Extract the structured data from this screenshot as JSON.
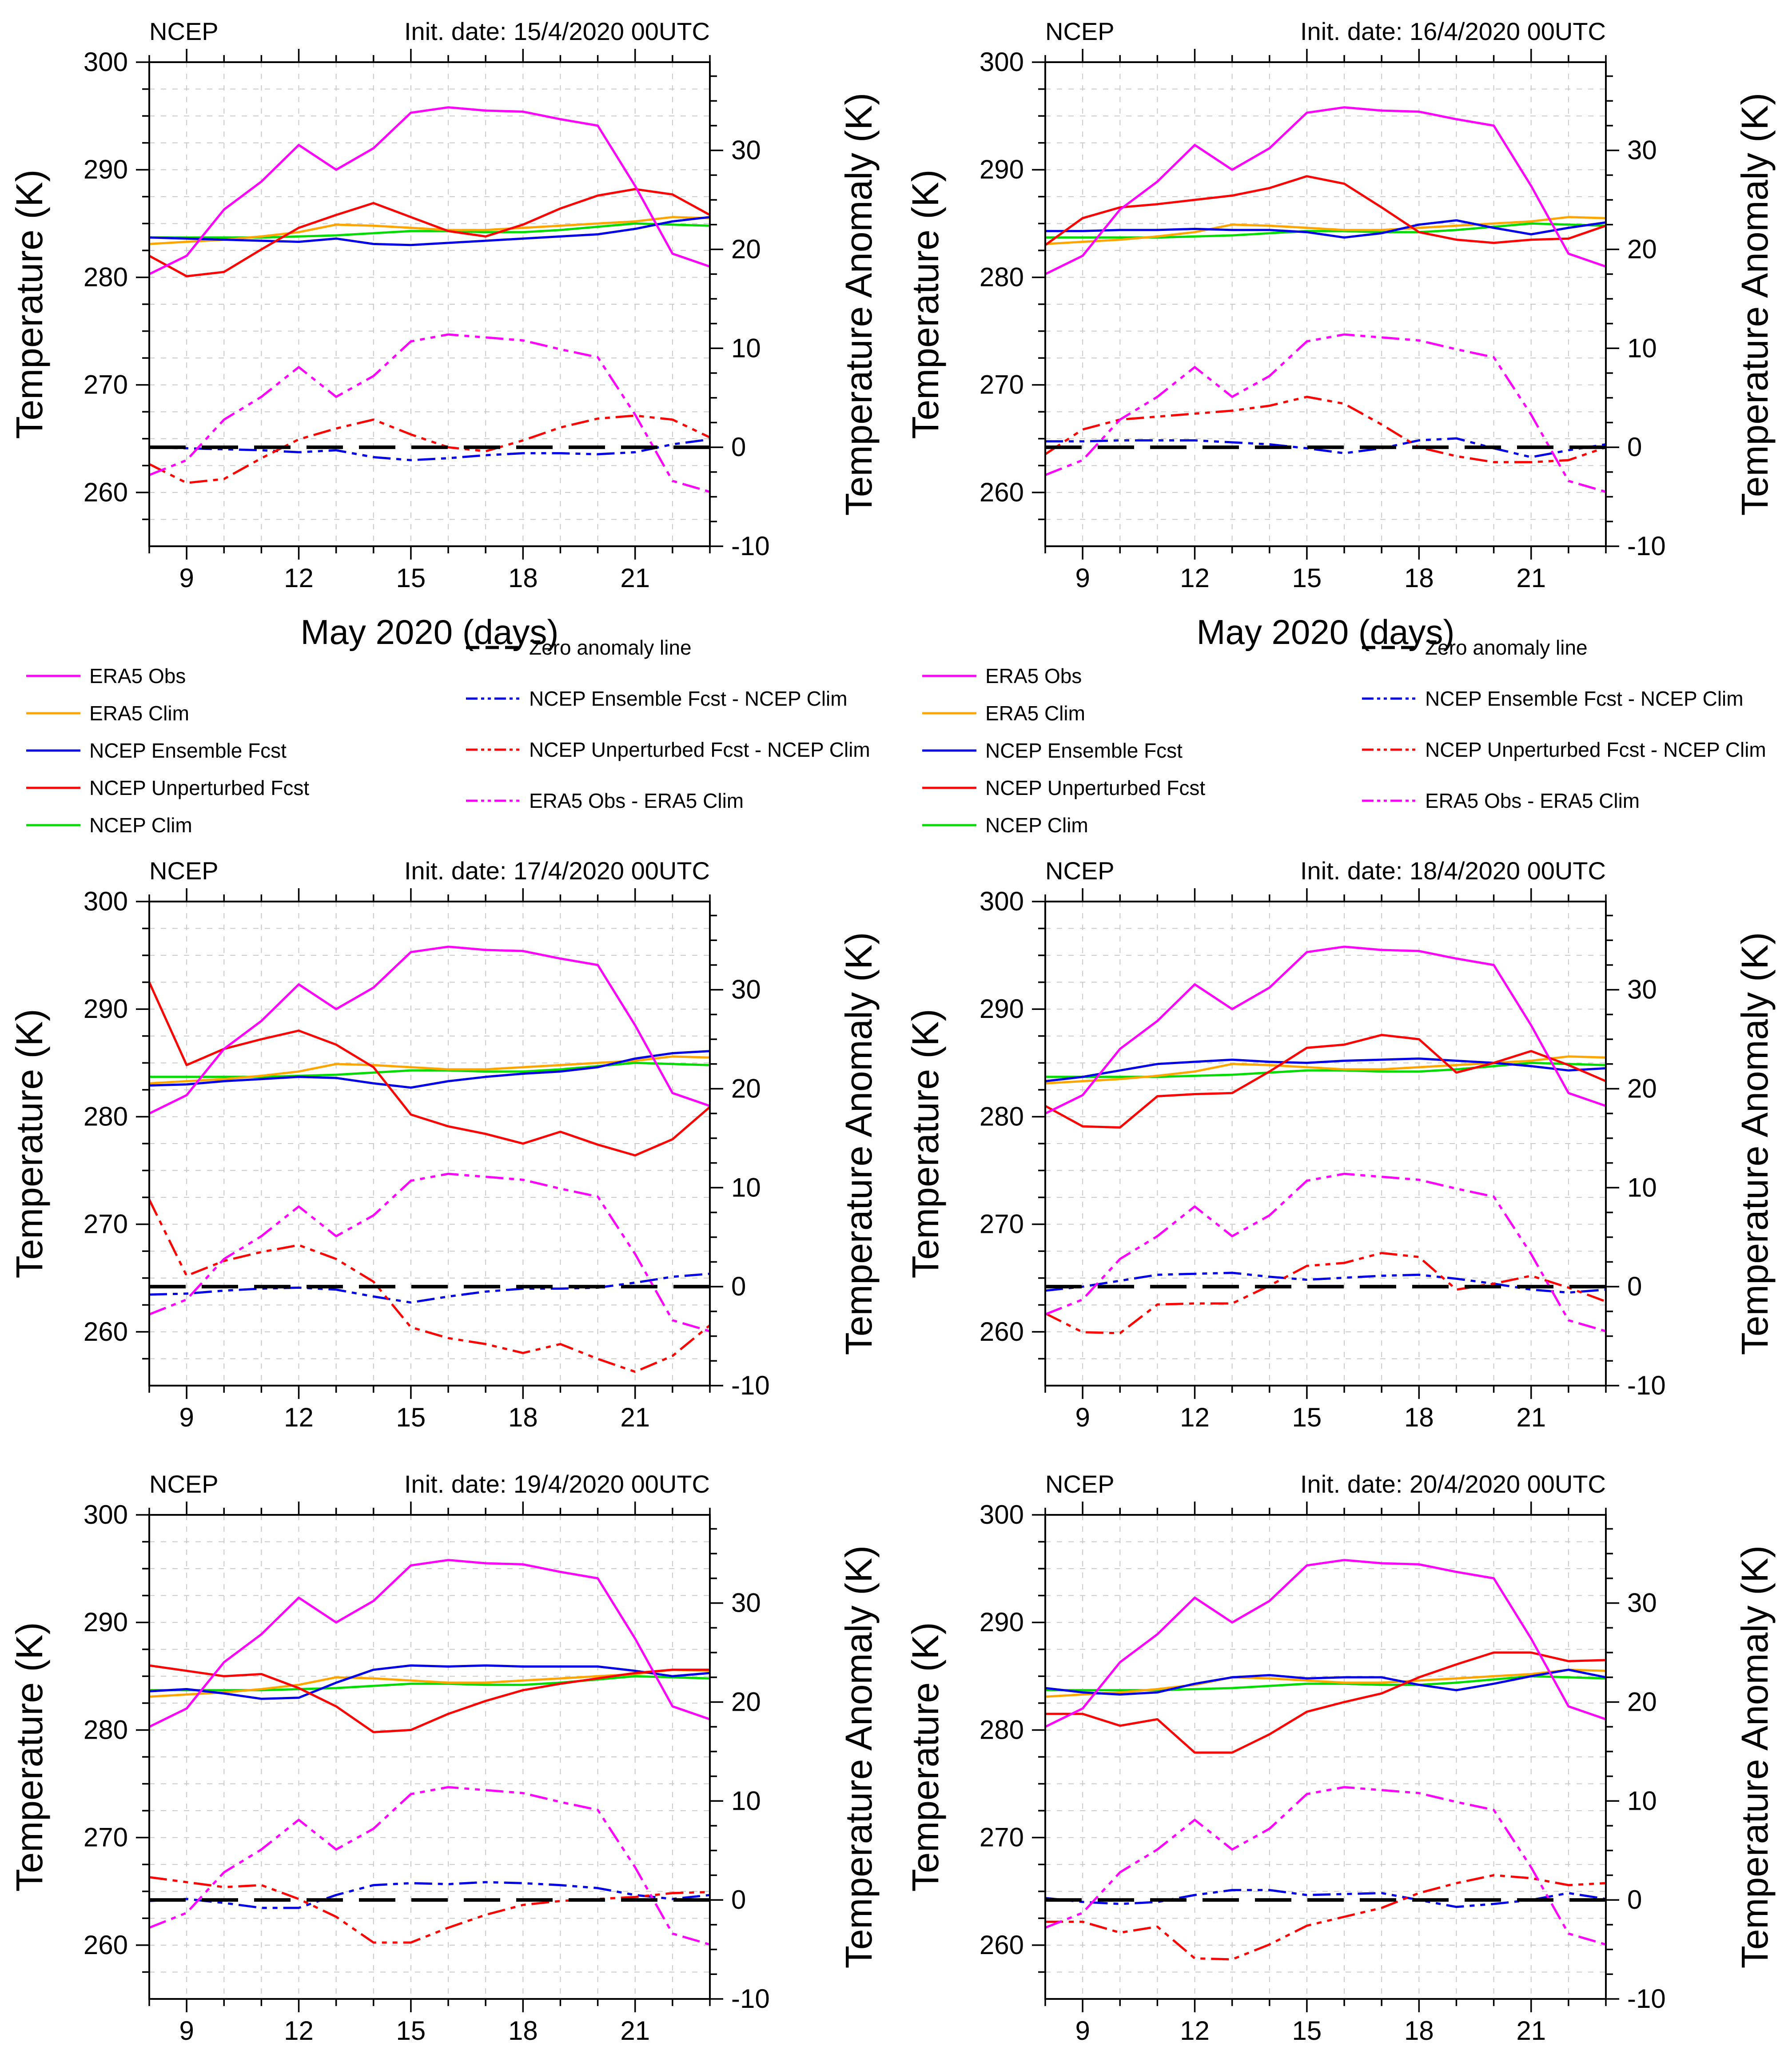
{
  "figure": {
    "description": "Six-panel NCEP forecast verification figure, 2 columns x 3 rows",
    "panel_titles_left": [
      "NCEP",
      "NCEP",
      "NCEP",
      "NCEP",
      "NCEP",
      "NCEP"
    ],
    "panel_titles_right": [
      "Init. date: 15/4/2020 00UTC",
      "Init. date: 16/4/2020 00UTC",
      "Init. date: 17/4/2020 00UTC",
      "Init. date: 18/4/2020 00UTC",
      "Init. date: 19/4/2020 00UTC",
      "Init. date: 20/4/2020 00UTC"
    ],
    "axis_labels": {
      "left": "Temperature (K)",
      "right": "Temperature Anomaly (K)",
      "x": "May 2020 (days)"
    },
    "tick_labels": {
      "left": [
        260,
        270,
        280,
        290,
        300
      ],
      "right": [
        -10,
        0,
        10,
        20,
        30
      ],
      "x": [
        9,
        12,
        15,
        18,
        21
      ]
    },
    "colors": {
      "era5_obs": "#FF00FF",
      "era5_clim": "#FFA500",
      "ncep_ensemble": "#0000E6",
      "ncep_unperturbed": "#FF0000",
      "ncep_clim": "#00DC00",
      "zero_line": "#000000",
      "grid": "#C9C9C9"
    },
    "legend": {
      "left_items": [
        {
          "label": "ERA5 Obs",
          "color": "#FF00FF",
          "style": "solid"
        },
        {
          "label": "ERA5 Clim",
          "color": "#FFA500",
          "style": "solid"
        },
        {
          "label": "NCEP Ensemble Fcst",
          "color": "#0000E6",
          "style": "solid"
        },
        {
          "label": "NCEP Unperturbed Fcst",
          "color": "#FF0000",
          "style": "solid"
        },
        {
          "label": "NCEP Clim",
          "color": "#00DC00",
          "style": "solid"
        }
      ],
      "right_items": [
        {
          "label": "Zero anomaly line",
          "color": "#000000",
          "style": "longdash"
        },
        {
          "label": "NCEP Ensemble Fcst - NCEP Clim",
          "color": "#0000E6",
          "style": "dashdotdot"
        },
        {
          "label": "NCEP Unperturbed Fcst - NCEP Clim",
          "color": "#FF0000",
          "style": "dashdotdot"
        },
        {
          "label": "ERA5 Obs - ERA5 Clim",
          "color": "#FF00FF",
          "style": "dashdotdot"
        }
      ]
    }
  },
  "chart_data": {
    "type": "line",
    "layout": "2x3 panel grid, each panel same axes",
    "x": [
      8,
      9,
      10,
      11,
      12,
      13,
      14,
      15,
      16,
      17,
      18,
      19,
      20,
      21,
      22,
      23
    ],
    "x_ticks": [
      9,
      12,
      15,
      18,
      21
    ],
    "xlabel": "May 2020 (days)",
    "ylabel_left": "Temperature (K)",
    "ylim_left": [
      255,
      300
    ],
    "yticks_left": [
      260,
      270,
      280,
      290,
      300
    ],
    "ylabel_right": "Temperature Anomaly (K)",
    "ylim_right": [
      -10,
      38.9
    ],
    "yticks_right": [
      -10,
      0,
      10,
      20,
      30
    ],
    "anomaly_zero_at_left_axis_value": 264.2,
    "grid": "light gray dashed, vertical every 1 day, horizontal every 2.5 K",
    "legend_position": "below top-row panels only",
    "anomaly_series_rule": "dash-dot-dot anomaly curves equal the solid curve minus its climatology: NCEP Ensemble Fcst - NCEP Clim (blue), NCEP Unperturbed Fcst - NCEP Clim (red), ERA5 Obs - ERA5 Clim (magenta); plus a black dashed zero anomaly line at 0",
    "shared_series": {
      "era5_obs": [
        280.3,
        282.0,
        286.3,
        288.9,
        292.3,
        290.0,
        292.0,
        295.3,
        295.8,
        295.5,
        295.4,
        294.7,
        294.1,
        288.5,
        282.2,
        281.0
      ],
      "era5_clim": [
        283.1,
        283.3,
        283.5,
        283.8,
        284.2,
        284.9,
        284.8,
        284.6,
        284.4,
        284.4,
        284.6,
        284.8,
        285.0,
        285.2,
        285.6,
        285.5
      ],
      "ncep_clim": [
        283.7,
        283.7,
        283.7,
        283.7,
        283.8,
        283.9,
        284.1,
        284.3,
        284.3,
        284.2,
        284.2,
        284.4,
        284.7,
        285.0,
        284.9,
        284.8
      ],
      "zero_anomaly_line": 0
    },
    "panels": [
      {
        "title_left": "NCEP",
        "title_right": "Init. date: 15/4/2020 00UTC",
        "has_xlabel_and_legend": true,
        "ncep_ensemble_fcst": [
          283.7,
          283.6,
          283.5,
          283.4,
          283.3,
          283.6,
          283.1,
          283.0,
          283.2,
          283.4,
          283.6,
          283.8,
          284.0,
          284.5,
          285.2,
          285.6
        ],
        "ncep_unperturbed_fcst": [
          282.0,
          280.1,
          280.5,
          282.6,
          284.6,
          285.8,
          286.9,
          285.6,
          284.3,
          283.8,
          284.9,
          286.4,
          287.6,
          288.2,
          287.7,
          285.8
        ]
      },
      {
        "title_left": "NCEP",
        "title_right": "Init. date: 16/4/2020 00UTC",
        "has_xlabel_and_legend": true,
        "ncep_ensemble_fcst": [
          284.3,
          284.3,
          284.4,
          284.4,
          284.5,
          284.4,
          284.4,
          284.2,
          283.7,
          284.1,
          284.9,
          285.3,
          284.6,
          284.0,
          284.6,
          285.1
        ],
        "ncep_unperturbed_fcst": [
          283.0,
          285.5,
          286.5,
          286.8,
          287.2,
          287.6,
          288.3,
          289.4,
          288.7,
          286.5,
          284.2,
          283.5,
          283.2,
          283.5,
          283.6,
          284.8
        ]
      },
      {
        "title_left": "NCEP",
        "title_right": "Init. date: 17/4/2020 00UTC",
        "has_xlabel_and_legend": false,
        "ncep_ensemble_fcst": [
          282.9,
          283.0,
          283.3,
          283.5,
          283.7,
          283.6,
          283.1,
          282.7,
          283.3,
          283.7,
          284.0,
          284.2,
          284.6,
          285.4,
          285.9,
          286.1
        ],
        "ncep_unperturbed_fcst": [
          292.5,
          284.8,
          286.3,
          287.2,
          288.0,
          286.7,
          284.6,
          280.2,
          279.1,
          278.4,
          277.5,
          278.6,
          277.4,
          276.4,
          277.9,
          280.9
        ]
      },
      {
        "title_left": "NCEP",
        "title_right": "Init. date: 18/4/2020 00UTC",
        "has_xlabel_and_legend": false,
        "ncep_ensemble_fcst": [
          283.3,
          283.7,
          284.3,
          284.9,
          285.1,
          285.3,
          285.1,
          285.0,
          285.2,
          285.3,
          285.4,
          285.2,
          285.0,
          284.7,
          284.3,
          284.5
        ],
        "ncep_unperturbed_fcst": [
          281.0,
          279.1,
          279.0,
          281.9,
          282.1,
          282.2,
          284.2,
          286.4,
          286.7,
          287.6,
          287.2,
          284.1,
          285.0,
          286.1,
          284.8,
          283.3
        ]
      },
      {
        "title_left": "NCEP",
        "title_right": "Init. date: 19/4/2020 00UTC",
        "has_xlabel_and_legend": false,
        "ncep_ensemble_fcst": [
          283.6,
          283.8,
          283.4,
          282.9,
          283.0,
          284.4,
          285.6,
          286.0,
          285.9,
          286.0,
          285.9,
          285.9,
          285.9,
          285.5,
          285.0,
          285.3
        ],
        "ncep_unperturbed_fcst": [
          286.0,
          285.5,
          285.0,
          285.2,
          283.9,
          282.2,
          279.8,
          280.0,
          281.5,
          282.7,
          283.7,
          284.3,
          284.8,
          285.3,
          285.6,
          285.6
        ]
      },
      {
        "title_left": "NCEP",
        "title_right": "Init. date: 20/4/2020 00UTC",
        "has_xlabel_and_legend": false,
        "ncep_ensemble_fcst": [
          283.9,
          283.5,
          283.3,
          283.5,
          284.3,
          284.9,
          285.1,
          284.8,
          284.9,
          284.9,
          284.2,
          283.7,
          284.3,
          285.0,
          285.6,
          284.9
        ],
        "ncep_unperturbed_fcst": [
          281.5,
          281.5,
          280.4,
          281.0,
          277.9,
          277.9,
          279.6,
          281.7,
          282.6,
          283.4,
          284.9,
          286.1,
          287.2,
          287.2,
          286.4,
          286.5
        ]
      }
    ],
    "series_legend_names": [
      "ERA5 Obs",
      "ERA5 Clim",
      "NCEP Ensemble Fcst",
      "NCEP Unperturbed Fcst",
      "NCEP Clim",
      "Zero anomaly line",
      "NCEP Ensemble Fcst - NCEP Clim",
      "NCEP Unperturbed Fcst - NCEP Clim",
      "ERA5 Obs - ERA5 Clim"
    ]
  }
}
